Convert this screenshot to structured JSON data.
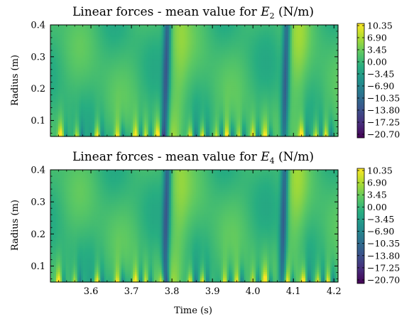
{
  "chart_data": [
    {
      "type": "heatmap",
      "title_prefix": "Linear forces - mean value for ",
      "title_sym": "E",
      "title_sub": "2",
      "title_suffix": " (N/m)",
      "ylabel": "Radius (m)",
      "xlabel": "",
      "xlim": [
        3.5,
        4.21
      ],
      "ylim": [
        0.05,
        0.4
      ],
      "xticks": [
        3.6,
        3.7,
        3.8,
        3.9,
        4.0,
        4.1,
        4.2
      ],
      "xtick_labels": [
        "",
        "",
        "",
        "",
        "",
        "",
        ""
      ],
      "yticks": [
        0.1,
        0.2,
        0.3,
        0.4
      ],
      "ytick_labels": [
        "0.1",
        "0.2",
        "0.3",
        "0.4"
      ],
      "colorbar": {
        "ticks": [
          10.35,
          6.9,
          3.45,
          0.0,
          -3.45,
          -6.9,
          -10.35,
          -13.8,
          -17.25,
          -20.7
        ],
        "tick_labels": [
          "10.35",
          "6.90",
          "3.45",
          "0.00",
          "−3.45",
          "−6.90",
          "−10.35",
          "−13.80",
          "−17.25",
          "−20.70"
        ],
        "range": [
          -22.0,
          12.0
        ],
        "colormap": "viridis"
      },
      "features": {
        "dark_bands_t": [
          3.785,
          4.08
        ],
        "hotspot_t": [
          3.525,
          3.565,
          3.615,
          3.665,
          3.71,
          3.735,
          3.765,
          3.845,
          3.875,
          3.91,
          3.935,
          3.965,
          4.0,
          4.03,
          4.12,
          4.155,
          4.18
        ]
      }
    },
    {
      "type": "heatmap",
      "title_prefix": "Linear forces - mean value for ",
      "title_sym": "E",
      "title_sub": "4",
      "title_suffix": " (N/m)",
      "ylabel": "Radius (m)",
      "xlabel": "Time (s)",
      "xlim": [
        3.5,
        4.21
      ],
      "ylim": [
        0.05,
        0.4
      ],
      "xticks": [
        3.6,
        3.7,
        3.8,
        3.9,
        4.0,
        4.1,
        4.2
      ],
      "xtick_labels": [
        "3.6",
        "3.7",
        "3.8",
        "3.9",
        "4.0",
        "4.1",
        "4.2"
      ],
      "yticks": [
        0.1,
        0.2,
        0.3,
        0.4
      ],
      "ytick_labels": [
        "0.1",
        "0.2",
        "0.3",
        "0.4"
      ],
      "colorbar": {
        "ticks": [
          10.35,
          6.9,
          3.45,
          0.0,
          -3.45,
          -6.9,
          -10.35,
          -13.8,
          -17.25,
          -20.7
        ],
        "tick_labels": [
          "10.35",
          "6.90",
          "3.45",
          "0.00",
          "−3.45",
          "−6.90",
          "−10.35",
          "−13.80",
          "−17.25",
          "−20.70"
        ],
        "range": [
          -22.0,
          12.0
        ],
        "colormap": "viridis"
      },
      "features": {
        "dark_bands_t": [
          3.785,
          4.075
        ],
        "hotspot_t": [
          3.52,
          3.56,
          3.615,
          3.665,
          3.71,
          3.735,
          3.775,
          3.845,
          3.875,
          3.93,
          3.96,
          4.0,
          4.03,
          4.085,
          4.125,
          4.16,
          4.185
        ]
      }
    }
  ]
}
